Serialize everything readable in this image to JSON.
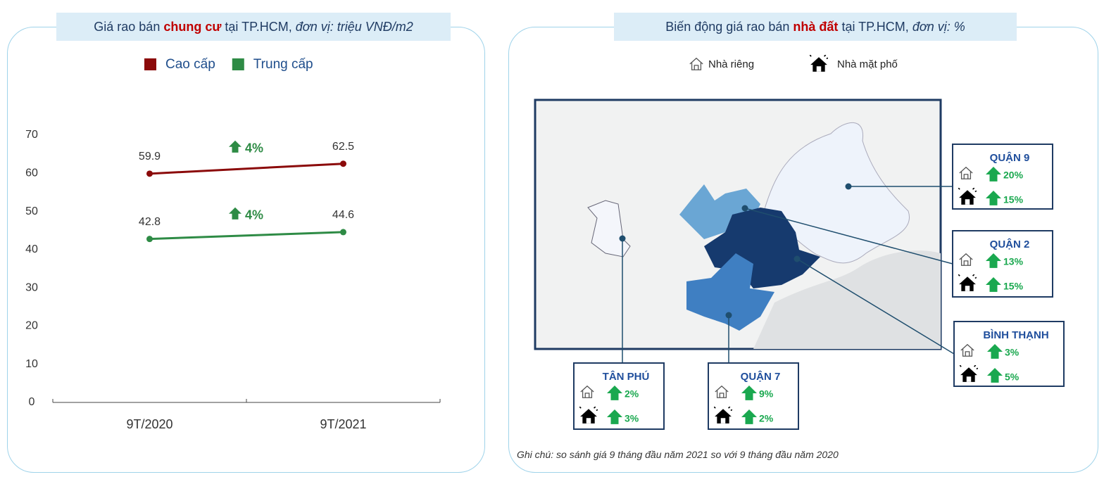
{
  "chart_data": {
    "type": "line",
    "title": [
      "Giá rao bán",
      "chung cư",
      "tại TP.HCM,",
      "đơn vị: triệu VNĐ/m2"
    ],
    "categories": [
      "9T/2020",
      "9T/2021"
    ],
    "series": [
      {
        "name": "Cao cấp",
        "color": "#8b0a0a",
        "values": [
          59.9,
          62.5
        ]
      },
      {
        "name": "Trung cấp",
        "color": "#2e8b45",
        "values": [
          42.8,
          44.6
        ]
      }
    ],
    "annotations": [
      "4%",
      "4%"
    ],
    "ylim": [
      0,
      70
    ],
    "yticks": [
      0,
      10,
      20,
      30,
      40,
      50,
      60,
      70
    ],
    "grid": false,
    "legend": "top"
  },
  "map_panel": {
    "title": [
      "Biến động giá rao bán",
      "nhà đất",
      "tại TP.HCM,",
      "đơn vị: %"
    ],
    "legend": [
      "Nhà riêng",
      "Nhà mặt phố"
    ],
    "districts": [
      {
        "name": "QUẬN 9",
        "nha_rieng": "20%",
        "nha_mat_pho": "15%"
      },
      {
        "name": "QUẬN 2",
        "nha_rieng": "13%",
        "nha_mat_pho": "15%"
      },
      {
        "name": "BÌNH THẠNH",
        "nha_rieng": "3%",
        "nha_mat_pho": "5%"
      },
      {
        "name": "TÂN PHÚ",
        "nha_rieng": "2%",
        "nha_mat_pho": "3%"
      },
      {
        "name": "QUẬN 7",
        "nha_rieng": "9%",
        "nha_mat_pho": "2%"
      }
    ],
    "note": "Ghi chú: so sánh giá 9 tháng đầu năm 2021 so với 9 tháng đầu năm 2020"
  }
}
